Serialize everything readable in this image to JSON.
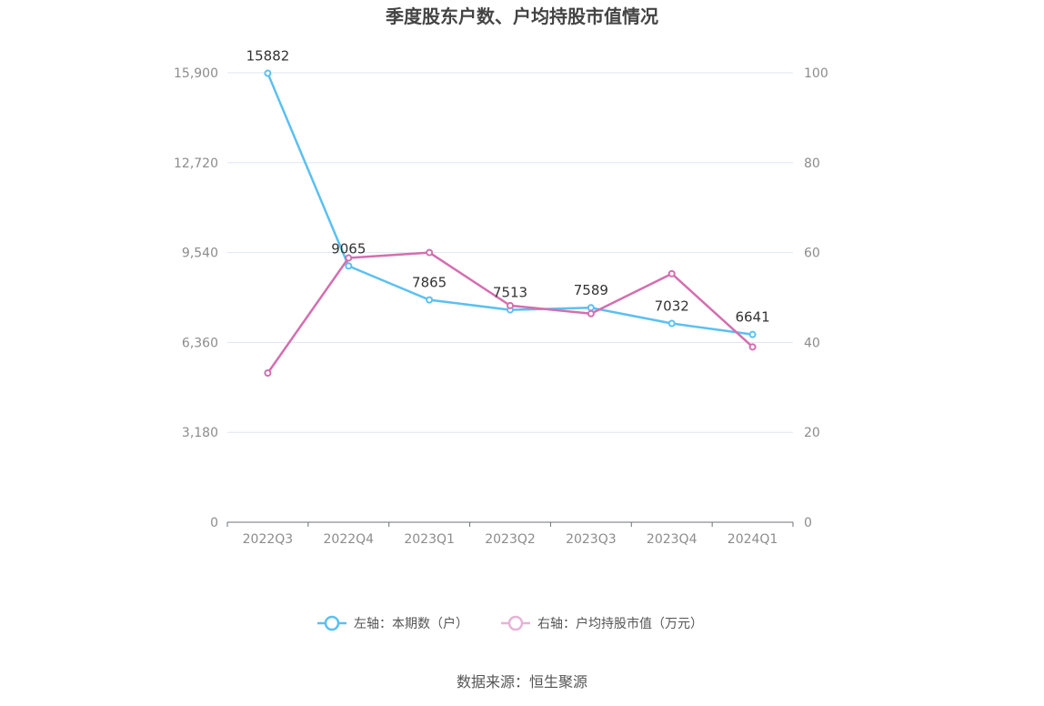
{
  "chart_data": {
    "type": "line",
    "title": "季度股东户数、户均持股市值情况",
    "categories": [
      "2022Q3",
      "2022Q4",
      "2023Q1",
      "2023Q2",
      "2023Q3",
      "2023Q4",
      "2024Q1"
    ],
    "series": [
      {
        "name": "左轴：本期数（户）",
        "axis": "left",
        "color": "#5bc0f0",
        "values": [
          15882,
          9065,
          7865,
          7513,
          7589,
          7032,
          6641
        ],
        "data_labels": [
          "15882",
          "9065",
          "7865",
          "7513",
          "7589",
          "7032",
          "6641"
        ]
      },
      {
        "name": "右轴：户均持股市值（万元）",
        "axis": "right",
        "color": "#d36fb0",
        "values": [
          33.2,
          58.8,
          60.0,
          48.2,
          46.4,
          55.3,
          39.0
        ]
      }
    ],
    "left_axis": {
      "ylim": [
        0,
        15900
      ],
      "ticks": [
        "0",
        "3,180",
        "6,360",
        "9,540",
        "12,720",
        "15,900"
      ]
    },
    "right_axis": {
      "ylim": [
        0,
        100
      ],
      "ticks": [
        "0",
        "20",
        "40",
        "60",
        "80",
        "100"
      ]
    },
    "legend_position": "bottom",
    "grid": true
  },
  "source": "数据来源：恒生聚源",
  "colors": {
    "axis": "#6e7079",
    "grid": "#e0e6f1",
    "tick_text": "#8c8c8c"
  }
}
